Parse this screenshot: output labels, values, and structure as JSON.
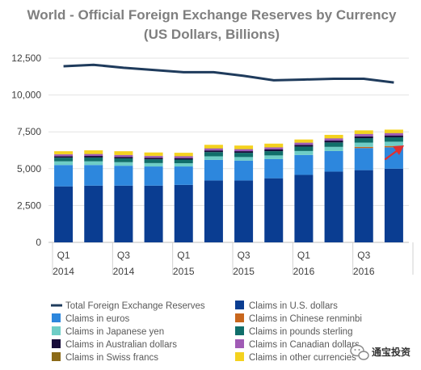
{
  "chart_data": {
    "type": "bar",
    "title": "World - Official Foreign Exchange Reserves by Currency",
    "subtitle": "(US Dollars, Billions)",
    "xlabel": "",
    "ylabel": "",
    "ylim": [
      0,
      12500
    ],
    "yticks": [
      0,
      2500,
      5000,
      7500,
      10000,
      12500
    ],
    "ytick_labels": [
      "0",
      "2,500",
      "5,000",
      "7,500",
      "10,000",
      "12,500"
    ],
    "grid": true,
    "legend_position": "bottom",
    "categories": [
      "2014Q1",
      "2014Q2",
      "2014Q3",
      "2014Q4",
      "2015Q1",
      "2015Q2",
      "2015Q3",
      "2015Q4",
      "2016Q1",
      "2016Q2",
      "2016Q3",
      "2016Q4"
    ],
    "x_tick_labels": [
      {
        "index": 0,
        "top": "Q1",
        "bottom": "2014"
      },
      {
        "index": 2,
        "top": "Q3",
        "bottom": "2014"
      },
      {
        "index": 4,
        "top": "Q1",
        "bottom": "2015"
      },
      {
        "index": 6,
        "top": "Q3",
        "bottom": "2015"
      },
      {
        "index": 8,
        "top": "Q1",
        "bottom": "2016"
      },
      {
        "index": 10,
        "top": "Q3",
        "bottom": "2016"
      }
    ],
    "line_series": {
      "name": "Total Foreign Exchange Reserves",
      "color": "#1f3b5c",
      "values": [
        11950,
        12050,
        11850,
        11700,
        11550,
        11550,
        11300,
        11000,
        11050,
        11100,
        11100,
        10850
      ]
    },
    "series": [
      {
        "name": "Claims in U.S. dollars",
        "color": "#0a3d91",
        "values": [
          3800,
          3850,
          3850,
          3850,
          3900,
          4200,
          4200,
          4350,
          4580,
          4800,
          4900,
          5000
        ]
      },
      {
        "name": "Claims in euros",
        "color": "#2d87dd",
        "values": [
          1450,
          1400,
          1350,
          1300,
          1250,
          1400,
          1350,
          1300,
          1350,
          1400,
          1500,
          1450
        ]
      },
      {
        "name": "Claims in Chinese renminbi",
        "color": "#c8661c",
        "values": [
          0,
          0,
          0,
          0,
          0,
          0,
          0,
          0,
          0,
          0,
          80,
          90
        ]
      },
      {
        "name": "Claims in Japanese yen",
        "color": "#6ecdc6",
        "values": [
          250,
          250,
          240,
          230,
          220,
          240,
          240,
          250,
          270,
          280,
          290,
          290
        ]
      },
      {
        "name": "Claims in pounds sterling",
        "color": "#106e6a",
        "values": [
          250,
          260,
          260,
          260,
          250,
          290,
          290,
          290,
          300,
          300,
          300,
          300
        ]
      },
      {
        "name": "Claims in Australian dollars",
        "color": "#170c3a",
        "values": [
          100,
          105,
          100,
          100,
          100,
          110,
          110,
          115,
          120,
          125,
          125,
          125
        ]
      },
      {
        "name": "Claims in Canadian dollars",
        "color": "#a05bb5",
        "values": [
          120,
          125,
          120,
          120,
          120,
          130,
          130,
          135,
          140,
          145,
          150,
          150
        ]
      },
      {
        "name": "Claims in Swiss francs",
        "color": "#8b6a18",
        "values": [
          15,
          15,
          15,
          15,
          15,
          15,
          15,
          15,
          15,
          15,
          15,
          15
        ]
      },
      {
        "name": "Claims in other currencies",
        "color": "#f4d21e",
        "values": [
          200,
          240,
          250,
          225,
          225,
          235,
          235,
          245,
          205,
          230,
          240,
          230
        ]
      }
    ],
    "legend_order": [
      "Total Foreign Exchange Reserves",
      "Claims in U.S. dollars",
      "Claims in euros",
      "Claims in Chinese renminbi",
      "Claims in Japanese yen",
      "Claims in pounds sterling",
      "Claims in Australian dollars",
      "Claims in Canadian dollars",
      "Claims in Swiss francs",
      "Claims in other currencies"
    ],
    "annotation": {
      "type": "arrow",
      "color": "#e03030"
    }
  },
  "watermark": {
    "text": "通宝投资",
    "icon": "wechat-icon"
  }
}
